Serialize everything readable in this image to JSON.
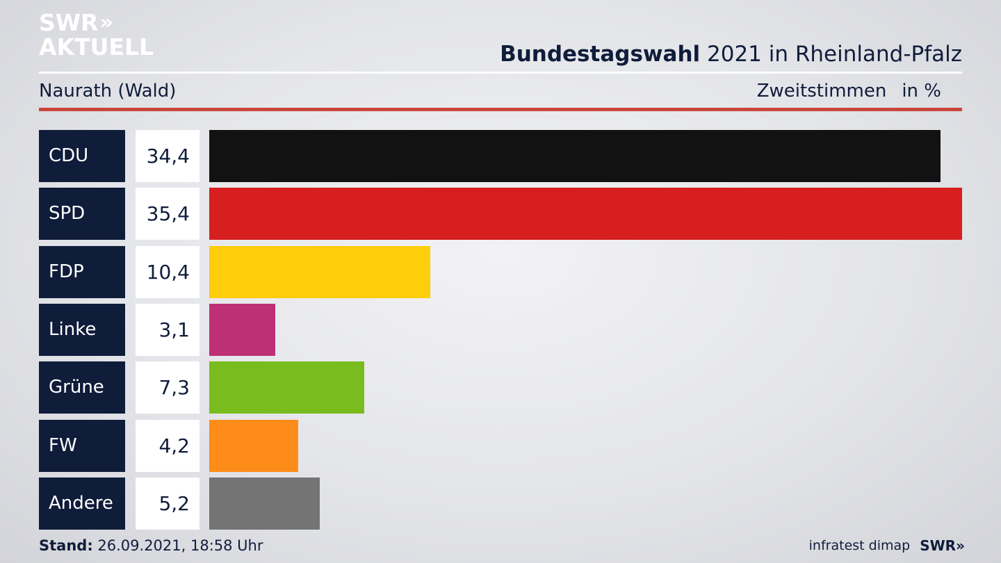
{
  "logo": {
    "line1": "SWR",
    "line1_chevrons": "»",
    "line2": "AKTUELL"
  },
  "header": {
    "title_bold": "Bundestagswahl",
    "title_rest": " 2021 in Rheinland-Pfalz",
    "location": "Naurath (Wald)",
    "measure": "Zweitstimmen",
    "unit": "in %"
  },
  "colors": {
    "label_bg": "#0f1c3a",
    "rule_red": "#c9463c"
  },
  "chart_data": {
    "type": "bar",
    "orientation": "horizontal",
    "categories": [
      "CDU",
      "SPD",
      "FDP",
      "Linke",
      "Grüne",
      "FW",
      "Andere"
    ],
    "values": [
      34.4,
      35.4,
      10.4,
      3.1,
      7.3,
      4.2,
      5.2
    ],
    "value_labels": [
      "34,4",
      "35,4",
      "10,4",
      "3,1",
      "7,3",
      "4,2",
      "5,2"
    ],
    "colors": [
      "#121212",
      "#d71f1f",
      "#fecd0b",
      "#be3075",
      "#78bd1d",
      "#fe8c18",
      "#747474"
    ],
    "xlim": [
      0,
      35.4
    ]
  },
  "footer": {
    "stand_label": "Stand:",
    "stand_value": " 26.09.2021, 18:58 Uhr",
    "source": "infratest dimap",
    "brand": "SWR",
    "brand_chevrons": "»"
  }
}
